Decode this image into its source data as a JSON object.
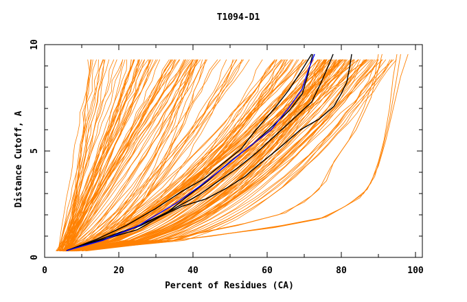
{
  "chart_data": {
    "type": "line",
    "title": "T1094-D1",
    "xlabel": "Percent of Residues (CA)",
    "ylabel": "Distance Cutoff, A",
    "xlim": [
      0,
      102
    ],
    "ylim": [
      0,
      10
    ],
    "x_ticks": [
      "0",
      "20",
      "40",
      "60",
      "80",
      "100"
    ],
    "x_tick_values": [
      0,
      20,
      40,
      60,
      80,
      100
    ],
    "y_ticks": [
      "0",
      "5",
      "10"
    ],
    "y_tick_values": [
      0,
      5,
      10
    ],
    "grid": false,
    "colors": {
      "background_curves": "#ff8000",
      "highlight": "#0000ff",
      "reference": "#000000"
    },
    "highlight_series": [
      {
        "name": "blue",
        "color": "#0000ff",
        "points": [
          [
            5.9,
            0.32
          ],
          [
            15.7,
            0.8
          ],
          [
            25,
            1.46
          ],
          [
            35.2,
            2.52
          ],
          [
            41.7,
            3.33
          ],
          [
            48.1,
            4.2
          ],
          [
            53.7,
            5.0
          ],
          [
            61.1,
            6.0
          ],
          [
            65.7,
            7.0
          ],
          [
            69.4,
            7.9
          ],
          [
            71.3,
            8.9
          ],
          [
            72.8,
            9.55
          ]
        ]
      },
      {
        "name": "black-1",
        "color": "#000000",
        "points": [
          [
            5.9,
            0.32
          ],
          [
            14,
            0.85
          ],
          [
            22,
            1.5
          ],
          [
            30,
            2.3
          ],
          [
            37,
            3.1
          ],
          [
            43,
            3.7
          ],
          [
            48,
            4.4
          ],
          [
            53,
            5.1
          ],
          [
            57,
            6.0
          ],
          [
            62,
            7.0
          ],
          [
            66,
            7.9
          ],
          [
            69,
            8.7
          ],
          [
            72,
            9.55
          ]
        ]
      },
      {
        "name": "black-2",
        "color": "#000000",
        "points": [
          [
            5.9,
            0.32
          ],
          [
            15,
            0.85
          ],
          [
            24,
            1.4
          ],
          [
            33,
            2.1
          ],
          [
            38,
            2.8
          ],
          [
            44,
            3.6
          ],
          [
            50,
            4.5
          ],
          [
            56,
            5.3
          ],
          [
            61,
            6.1
          ],
          [
            66,
            6.9
          ],
          [
            69.5,
            7.7
          ],
          [
            71,
            8.6
          ],
          [
            72.3,
            9.55
          ]
        ]
      },
      {
        "name": "black-3",
        "color": "#000000",
        "points": [
          [
            5.9,
            0.32
          ],
          [
            16,
            0.85
          ],
          [
            26,
            1.5
          ],
          [
            35,
            2.3
          ],
          [
            41.7,
            2.95
          ],
          [
            47,
            3.6
          ],
          [
            52,
            4.2
          ],
          [
            57,
            4.9
          ],
          [
            62,
            5.7
          ],
          [
            67,
            6.5
          ],
          [
            72,
            7.3
          ],
          [
            74.5,
            8.2
          ],
          [
            76.5,
            9.0
          ],
          [
            77.8,
            9.55
          ]
        ]
      },
      {
        "name": "black-4",
        "color": "#000000",
        "points": [
          [
            5.9,
            0.32
          ],
          [
            16,
            0.85
          ],
          [
            25,
            1.3
          ],
          [
            31,
            1.9
          ],
          [
            37,
            2.4
          ],
          [
            43.5,
            2.75
          ],
          [
            49,
            3.25
          ],
          [
            54,
            3.8
          ],
          [
            58,
            4.4
          ],
          [
            63,
            5.1
          ],
          [
            69,
            6.0
          ],
          [
            74,
            6.5
          ],
          [
            78,
            7.1
          ],
          [
            80,
            7.7
          ],
          [
            81.5,
            8.25
          ],
          [
            82.3,
            9.0
          ],
          [
            82.8,
            9.55
          ]
        ]
      }
    ],
    "background_families": [
      {
        "name": "steep-left",
        "count": 60,
        "x_start": [
          3,
          7
        ],
        "x_end": [
          12,
          42
        ],
        "power": [
          0.8,
          1.1
        ]
      },
      {
        "name": "middle",
        "count": 90,
        "x_start": [
          4,
          8
        ],
        "x_end": [
          40,
          90
        ],
        "power": [
          0.45,
          0.8
        ]
      },
      {
        "name": "right-band",
        "count": 40,
        "x_start": [
          5,
          9
        ],
        "x_end": [
          75,
          96
        ],
        "power": [
          0.35,
          0.55
        ]
      }
    ],
    "lower_series": [
      {
        "name": "lower-1",
        "points": [
          [
            9,
            0.3
          ],
          [
            40,
            0.9
          ],
          [
            62,
            1.4
          ],
          [
            74,
            1.8
          ],
          [
            80,
            2.3
          ],
          [
            85,
            2.8
          ],
          [
            88,
            3.5
          ],
          [
            90,
            4.5
          ],
          [
            91.5,
            5.5
          ],
          [
            93,
            7
          ],
          [
            94,
            8.5
          ],
          [
            95,
            9.55
          ]
        ]
      },
      {
        "name": "lower-2",
        "points": [
          [
            10,
            0.3
          ],
          [
            42,
            0.95
          ],
          [
            63,
            1.45
          ],
          [
            75,
            1.85
          ],
          [
            81,
            2.4
          ],
          [
            86,
            3.0
          ],
          [
            89,
            3.8
          ],
          [
            91,
            5.0
          ],
          [
            93,
            6.5
          ],
          [
            95,
            8.5
          ],
          [
            96,
            9.55
          ]
        ]
      },
      {
        "name": "lower-3",
        "points": [
          [
            11,
            0.3
          ],
          [
            45,
            1.0
          ],
          [
            64,
            1.5
          ],
          [
            76,
            1.9
          ],
          [
            82,
            2.5
          ],
          [
            87,
            3.2
          ],
          [
            90,
            4.3
          ],
          [
            92,
            5.5
          ],
          [
            94,
            7.0
          ],
          [
            96,
            8.5
          ],
          [
            98,
            9.55
          ]
        ]
      },
      {
        "name": "lower-4",
        "points": [
          [
            8,
            0.3
          ],
          [
            35,
            0.9
          ],
          [
            52,
            1.5
          ],
          [
            63,
            2.0
          ],
          [
            70,
            2.6
          ],
          [
            74,
            3.2
          ],
          [
            77,
            4.2
          ],
          [
            80,
            5.0
          ],
          [
            84,
            6.0
          ],
          [
            88,
            7.5
          ],
          [
            91,
            9.55
          ]
        ]
      },
      {
        "name": "lower-5",
        "points": [
          [
            8.5,
            0.3
          ],
          [
            36,
            0.95
          ],
          [
            54,
            1.6
          ],
          [
            65,
            2.1
          ],
          [
            72,
            2.9
          ],
          [
            76,
            3.6
          ],
          [
            78,
            4.5
          ],
          [
            82,
            5.5
          ],
          [
            86,
            7.0
          ],
          [
            89,
            8.5
          ],
          [
            90,
            9.55
          ]
        ]
      }
    ]
  }
}
